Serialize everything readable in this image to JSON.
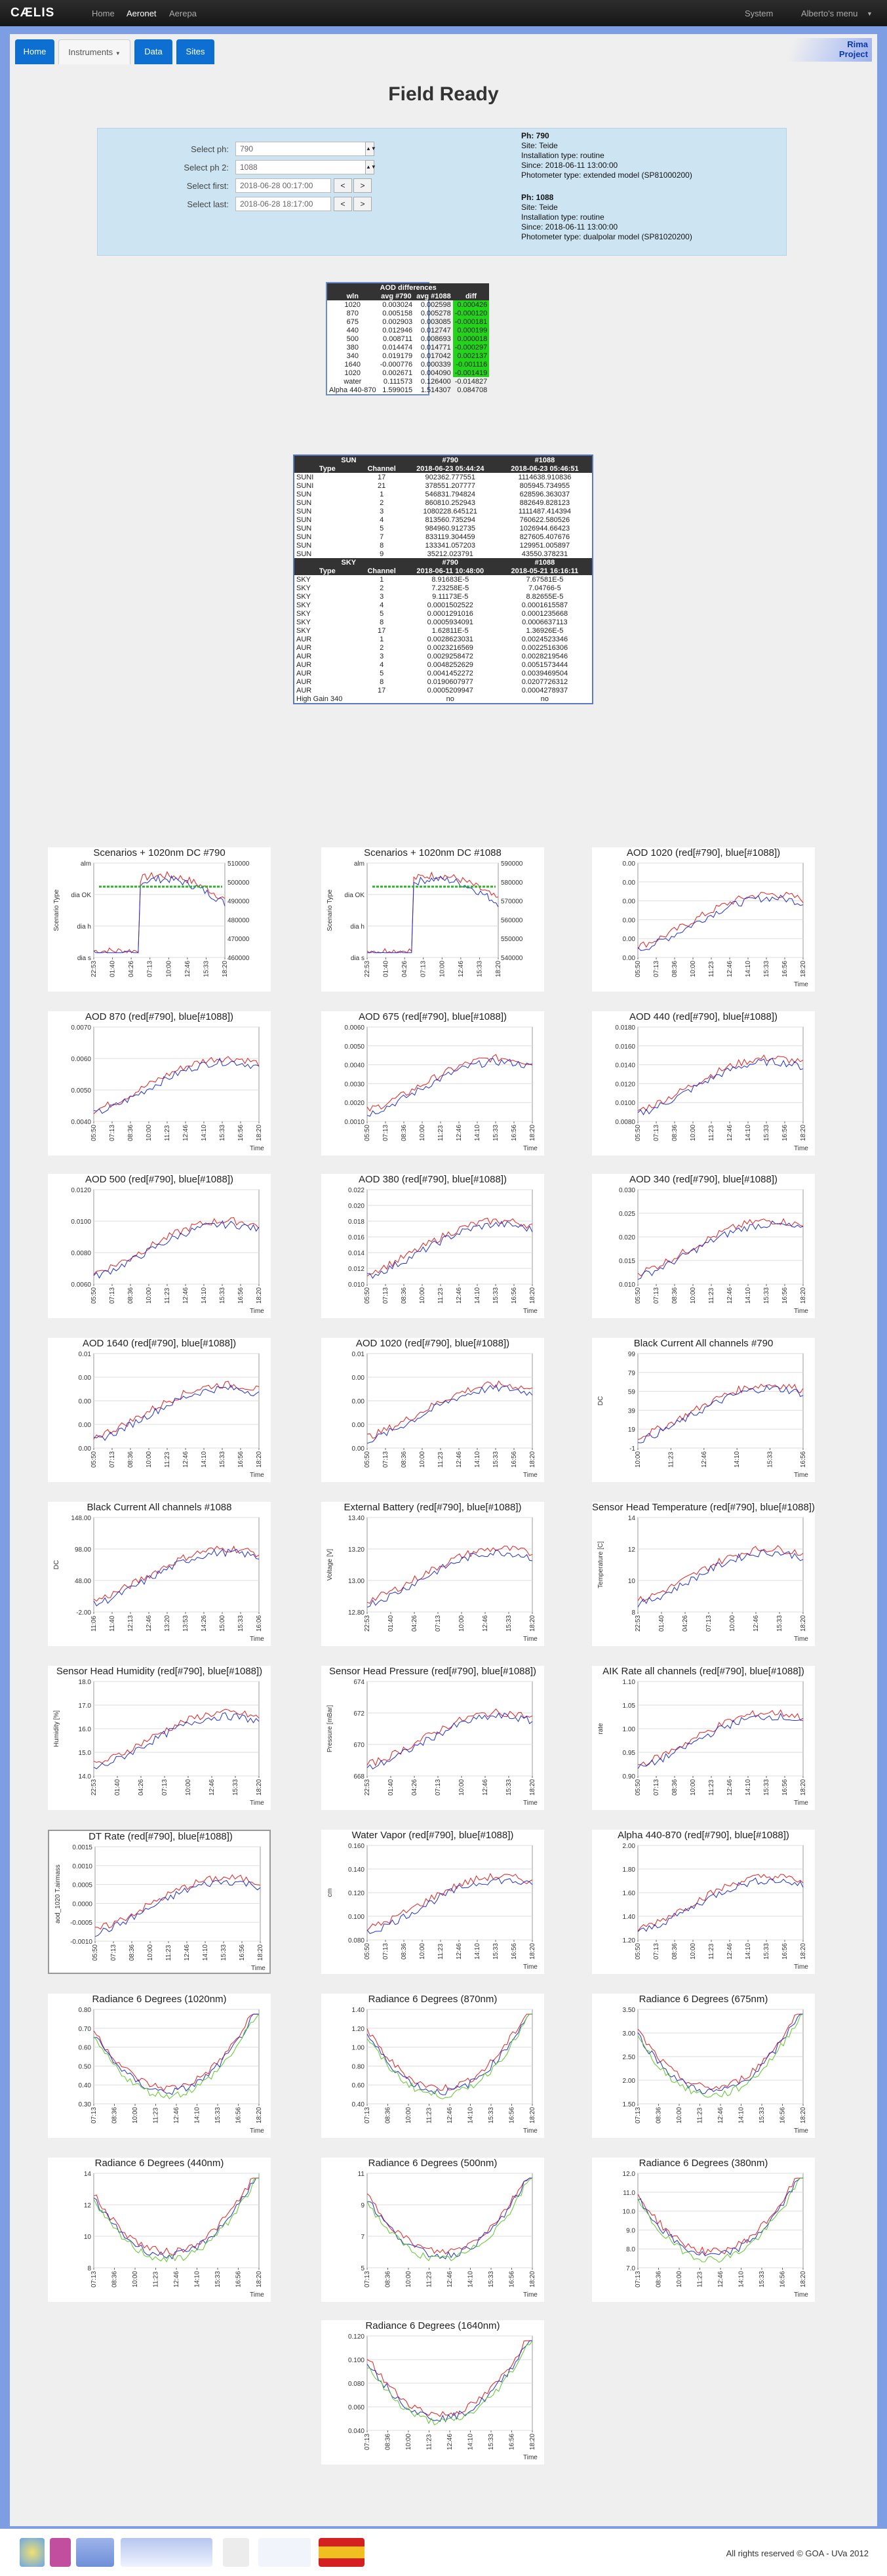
{
  "nav": {
    "brand": "CÆLIS",
    "home": "Home",
    "aeronet": "Aeronet",
    "aerepa": "Aerepa",
    "system": "System",
    "user": "Alberto's menu"
  },
  "tabs": {
    "home": "Home",
    "instruments": "Instruments",
    "data": "Data",
    "sites": "Sites"
  },
  "rima": {
    "line1": "Rima",
    "line2": "Project"
  },
  "page_title": "Field Ready",
  "selectors": {
    "ph_label": "Select ph:",
    "ph_value": "790",
    "ph2_label": "Select ph 2:",
    "ph2_value": "1088",
    "first_label": "Select first:",
    "first_value": "2018-06-28 00:17:00",
    "last_label": "Select last:",
    "last_value": "2018-06-28 18:17:00",
    "prev": "<",
    "next": ">"
  },
  "ph1": {
    "ph": "Ph: 790",
    "site": "Site: Teide",
    "inst": "Installation type: routine",
    "since": "Since: 2018-06-11 13:00:00",
    "model": "Photometer type: extended model (SP81000200)"
  },
  "ph2": {
    "ph": "Ph: 1088",
    "site": "Site: Teide",
    "inst": "Installation type: routine",
    "since": "Since: 2018-06-11 13:00:00",
    "model": "Photometer type: dualpolar model (SP81020200)"
  },
  "aod_table": {
    "title": "AOD differences",
    "headers": [
      "wln",
      "avg #790",
      "avg #1088",
      "diff"
    ],
    "rows": [
      [
        "1020",
        "0.003024",
        "0.002598",
        "0.000426"
      ],
      [
        "870",
        "0.005158",
        "0.005278",
        "-0.000120"
      ],
      [
        "675",
        "0.002903",
        "0.003085",
        "-0.000181"
      ],
      [
        "440",
        "0.012946",
        "0.012747",
        "0.000199"
      ],
      [
        "500",
        "0.008711",
        "0.008693",
        "0.000018"
      ],
      [
        "380",
        "0.014474",
        "0.014771",
        "-0.000297"
      ],
      [
        "340",
        "0.019179",
        "0.017042",
        "0.002137"
      ],
      [
        "1640",
        "-0.000776",
        "0.000339",
        "-0.001116"
      ],
      [
        "1020",
        "0.002671",
        "0.004090",
        "-0.001419"
      ],
      [
        "water",
        "0.111573",
        "0.126400",
        "-0.014827"
      ],
      [
        "Alpha 440-870",
        "1.599015",
        "1.514307",
        "0.084708"
      ]
    ]
  },
  "sun_table": {
    "h1": [
      "SUN",
      "#790",
      "#1088"
    ],
    "h2": [
      "Type",
      "Channel",
      "2018-06-23 05:44:24",
      "2018-06-23 05:46:51"
    ],
    "rows": [
      [
        "SUNI",
        "17",
        "902362.777551",
        "1114638.910836"
      ],
      [
        "SUNI",
        "21",
        "378551.207777",
        "805945.734955"
      ],
      [
        "SUN",
        "1",
        "546831.794824",
        "628596.363037"
      ],
      [
        "SUN",
        "2",
        "860810.252943",
        "882649.828123"
      ],
      [
        "SUN",
        "3",
        "1080228.645121",
        "1111487.414394"
      ],
      [
        "SUN",
        "4",
        "813560.735294",
        "760622.580526"
      ],
      [
        "SUN",
        "5",
        "984960.912735",
        "1026944.66423"
      ],
      [
        "SUN",
        "7",
        "833119.304459",
        "827605.407676"
      ],
      [
        "SUN",
        "8",
        "133341.057203",
        "129951.005897"
      ],
      [
        "SUN",
        "9",
        "35212.023791",
        "43550.378231"
      ]
    ],
    "s1": [
      "SKY",
      "#790",
      "#1088"
    ],
    "s2": [
      "Type",
      "Channel",
      "2018-06-11 10:48:00",
      "2018-05-21 16:16:11"
    ],
    "srows": [
      [
        "SKY",
        "1",
        "8.91683E-5",
        "7.67581E-5"
      ],
      [
        "SKY",
        "2",
        "7.23258E-5",
        "7.04766-5"
      ],
      [
        "SKY",
        "3",
        "9.11173E-5",
        "8.82655E-5"
      ],
      [
        "SKY",
        "4",
        "0.0001502522",
        "0.0001615587"
      ],
      [
        "SKY",
        "5",
        "0.0001291016",
        "0.0001235668"
      ],
      [
        "SKY",
        "8",
        "0.0005934091",
        "0.0006637113"
      ],
      [
        "SKY",
        "17",
        "1.62811E-5",
        "1.36926E-5"
      ],
      [
        "AUR",
        "1",
        "0.0028623031",
        "0.0024523346"
      ],
      [
        "AUR",
        "2",
        "0.0023216569",
        "0.0022516306"
      ],
      [
        "AUR",
        "3",
        "0.0029258472",
        "0.0028219546"
      ],
      [
        "AUR",
        "4",
        "0.0048252629",
        "0.0051573444"
      ],
      [
        "AUR",
        "5",
        "0.0041452272",
        "0.0039469504"
      ],
      [
        "AUR",
        "8",
        "0.0190607977",
        "0.0207726312"
      ],
      [
        "AUR",
        "17",
        "0.0005209947",
        "0.0004278937"
      ],
      [
        "High Gain 340",
        "",
        "no",
        "no"
      ]
    ]
  },
  "charts": [
    {
      "title": "Scenarios + 1020nm DC #790",
      "xlabel": "",
      "ylabel": "Scenario Type",
      "y2": [
        "510000",
        "500000",
        "490000",
        "480000",
        "470000",
        "460000"
      ],
      "yt": [
        "alm",
        "dia OK",
        "dia h",
        "dia s"
      ],
      "xt": [
        "22:53",
        "01:40",
        "04:26",
        "07:13",
        "10:00",
        "12:46",
        "15:33",
        "18:20"
      ]
    },
    {
      "title": "Scenarios + 1020nm DC #1088",
      "xlabel": "",
      "ylabel": "Scenario Type",
      "y2": [
        "590000",
        "580000",
        "570000",
        "560000",
        "550000",
        "540000"
      ],
      "yt": [
        "alm",
        "dia OK",
        "dia h",
        "dia s"
      ],
      "xt": [
        "22:53",
        "01:40",
        "04:26",
        "07:13",
        "10:00",
        "12:46",
        "15:33",
        "18:20"
      ]
    },
    {
      "title": "AOD 1020 (red[#790], blue[#1088])",
      "xlabel": "Time",
      "ylabel": "",
      "yt": [
        "0.00",
        "0.00",
        "0.00",
        "0.00",
        "0.00",
        "0.00"
      ],
      "xt": [
        "05:50",
        "07:13",
        "08:36",
        "10:00",
        "11:23",
        "12:46",
        "14:10",
        "15:33",
        "16:56",
        "18:20"
      ]
    },
    {
      "title": "AOD 870 (red[#790], blue[#1088])",
      "xlabel": "Time",
      "ylabel": "",
      "yt": [
        "0.0070",
        "0.0060",
        "0.0050",
        "0.0040"
      ],
      "xt": [
        "05:50",
        "07:13",
        "08:36",
        "10:00",
        "11:23",
        "12:46",
        "14:10",
        "15:33",
        "16:56",
        "18:20"
      ]
    },
    {
      "title": "AOD 675 (red[#790], blue[#1088])",
      "xlabel": "Time",
      "ylabel": "",
      "yt": [
        "0.0060",
        "0.0050",
        "0.0040",
        "0.0030",
        "0.0020",
        "0.0010"
      ],
      "xt": [
        "05:50",
        "07:13",
        "08:36",
        "10:00",
        "11:23",
        "12:46",
        "14:10",
        "15:33",
        "16:56",
        "18:20"
      ]
    },
    {
      "title": "AOD 440 (red[#790], blue[#1088])",
      "xlabel": "Time",
      "ylabel": "",
      "yt": [
        "0.0180",
        "0.0160",
        "0.0140",
        "0.0120",
        "0.0100",
        "0.0080"
      ],
      "xt": [
        "05:50",
        "07:13",
        "08:36",
        "10:00",
        "11:23",
        "12:46",
        "14:10",
        "15:33",
        "16:56",
        "18:20"
      ]
    },
    {
      "title": "AOD 500 (red[#790], blue[#1088])",
      "xlabel": "Time",
      "ylabel": "",
      "yt": [
        "0.0120",
        "0.0100",
        "0.0080",
        "0.0060"
      ],
      "xt": [
        "05:50",
        "07:13",
        "08:36",
        "10:00",
        "11:23",
        "12:46",
        "14:10",
        "15:33",
        "16:56",
        "18:20"
      ]
    },
    {
      "title": "AOD 380 (red[#790], blue[#1088])",
      "xlabel": "Time",
      "ylabel": "",
      "yt": [
        "0.022",
        "0.020",
        "0.018",
        "0.016",
        "0.014",
        "0.012",
        "0.010"
      ],
      "xt": [
        "05:50",
        "07:13",
        "08:36",
        "10:00",
        "11:23",
        "12:46",
        "14:10",
        "15:33",
        "16:56",
        "18:20"
      ]
    },
    {
      "title": "AOD 340 (red[#790], blue[#1088])",
      "xlabel": "Time",
      "ylabel": "",
      "yt": [
        "0.030",
        "0.025",
        "0.020",
        "0.015",
        "0.010"
      ],
      "xt": [
        "05:50",
        "07:13",
        "08:36",
        "10:00",
        "11:23",
        "12:46",
        "14:10",
        "15:33",
        "16:56",
        "18:20"
      ]
    },
    {
      "title": "AOD 1640 (red[#790], blue[#1088])",
      "xlabel": "Time",
      "ylabel": "",
      "yt": [
        "0.01",
        "0.00",
        "0.00",
        "0.00",
        "0.00"
      ],
      "xt": [
        "05:50",
        "07:13",
        "08:36",
        "10:00",
        "11:23",
        "12:46",
        "14:10",
        "15:33",
        "16:56",
        "18:20"
      ]
    },
    {
      "title": "AOD 1020 (red[#790], blue[#1088])",
      "xlabel": "Time",
      "ylabel": "",
      "yt": [
        "0.01",
        "0.00",
        "0.00",
        "0.00",
        "0.00"
      ],
      "xt": [
        "05:50",
        "07:13",
        "08:36",
        "10:00",
        "11:23",
        "12:46",
        "14:10",
        "15:33",
        "16:56",
        "18:20"
      ]
    },
    {
      "title": "Black Current All channels #790",
      "xlabel": "Time",
      "ylabel": "DC",
      "yt": [
        "99",
        "79",
        "59",
        "39",
        "19",
        "-1"
      ],
      "xt": [
        "10:00",
        "11:23",
        "12:46",
        "14:10",
        "15:33",
        "16:56"
      ]
    },
    {
      "title": "Black Current All channels #1088",
      "xlabel": "Time",
      "ylabel": "DC",
      "yt": [
        "148.00",
        "98.00",
        "48.00",
        "-2.00"
      ],
      "xt": [
        "11:06",
        "11:40",
        "12:13",
        "12:46",
        "13:20",
        "13:53",
        "14:26",
        "15:00",
        "15:33",
        "16:06"
      ]
    },
    {
      "title": "External Battery (red[#790], blue[#1088])",
      "xlabel": "Time",
      "ylabel": "Voltage [V]",
      "yt": [
        "13.40",
        "13.20",
        "13.00",
        "12.80"
      ],
      "xt": [
        "22:53",
        "01:40",
        "04:26",
        "07:13",
        "10:00",
        "12:46",
        "15:33",
        "18:20"
      ]
    },
    {
      "title": "Sensor Head Temperature (red[#790], blue[#1088])",
      "xlabel": "Time",
      "ylabel": "Temperature [C]",
      "yt": [
        "14",
        "12",
        "10",
        "8"
      ],
      "xt": [
        "22:53",
        "01:40",
        "04:26",
        "07:13",
        "10:00",
        "12:46",
        "15:33",
        "18:20"
      ]
    },
    {
      "title": "Sensor Head Humidity (red[#790], blue[#1088])",
      "xlabel": "Time",
      "ylabel": "Humidity [%]",
      "yt": [
        "18.0",
        "17.0",
        "16.0",
        "15.0",
        "14.0"
      ],
      "xt": [
        "22:53",
        "01:40",
        "04:26",
        "07:13",
        "10:00",
        "12:46",
        "15:33",
        "18:20"
      ]
    },
    {
      "title": "Sensor Head Pressure (red[#790], blue[#1088])",
      "xlabel": "Time",
      "ylabel": "Pressure [mBar]",
      "yt": [
        "674",
        "672",
        "670",
        "668"
      ],
      "xt": [
        "22:53",
        "01:40",
        "04:26",
        "07:13",
        "10:00",
        "12:46",
        "15:33",
        "18:20"
      ]
    },
    {
      "title": "AIK Rate all channels (red[#790], blue[#1088])",
      "xlabel": "Time",
      "ylabel": "rate",
      "yt": [
        "1.10",
        "1.05",
        "1.00",
        "0.95",
        "0.90"
      ],
      "xt": [
        "05:50",
        "07:13",
        "08:36",
        "10:00",
        "11:23",
        "12:46",
        "14:10",
        "15:33",
        "16:56",
        "18:20"
      ]
    },
    {
      "title": "DT Rate (red[#790], blue[#1088])",
      "xlabel": "Time",
      "ylabel": "aod_1020 T.airmass",
      "yt": [
        "0.0015",
        "0.0010",
        "0.0005",
        "0.0000",
        "-0.0005",
        "-0.0010"
      ],
      "xt": [
        "05:50",
        "07:13",
        "08:36",
        "10:00",
        "11:23",
        "12:46",
        "14:10",
        "15:33",
        "16:56",
        "18:20"
      ]
    },
    {
      "title": "Water Vapor (red[#790], blue[#1088])",
      "xlabel": "Time",
      "ylabel": "cm",
      "yt": [
        "0.160",
        "0.140",
        "0.120",
        "0.100",
        "0.080"
      ],
      "xt": [
        "05:50",
        "07:13",
        "08:36",
        "10:00",
        "11:23",
        "12:46",
        "14:10",
        "15:33",
        "16:56",
        "18:20"
      ]
    },
    {
      "title": "Alpha 440-870 (red[#790], blue[#1088])",
      "xlabel": "Time",
      "ylabel": "",
      "yt": [
        "2.00",
        "1.80",
        "1.60",
        "1.40",
        "1.20"
      ],
      "xt": [
        "05:50",
        "07:13",
        "08:36",
        "10:00",
        "11:23",
        "12:46",
        "14:10",
        "15:33",
        "16:56",
        "18:20"
      ]
    },
    {
      "title": "Radiance 6 Degrees (1020nm)",
      "xlabel": "Time",
      "ylabel": "",
      "yt": [
        "0.80",
        "0.70",
        "0.60",
        "0.50",
        "0.40",
        "0.30"
      ],
      "xt": [
        "07:13",
        "08:36",
        "10:00",
        "11:23",
        "12:46",
        "14:10",
        "15:33",
        "16:56",
        "18:20"
      ]
    },
    {
      "title": "Radiance 6 Degrees (870nm)",
      "xlabel": "Time",
      "ylabel": "",
      "yt": [
        "1.40",
        "1.20",
        "1.00",
        "0.80",
        "0.60",
        "0.40"
      ],
      "xt": [
        "07:13",
        "08:36",
        "10:00",
        "11:23",
        "12:46",
        "14:10",
        "15:33",
        "16:56",
        "18:20"
      ]
    },
    {
      "title": "Radiance 6 Degrees (675nm)",
      "xlabel": "Time",
      "ylabel": "",
      "yt": [
        "3.50",
        "3.00",
        "2.50",
        "2.00",
        "1.50"
      ],
      "xt": [
        "07:13",
        "08:36",
        "10:00",
        "11:23",
        "12:46",
        "14:10",
        "15:33",
        "16:56",
        "18:20"
      ]
    },
    {
      "title": "Radiance 6 Degrees (440nm)",
      "xlabel": "Time",
      "ylabel": "",
      "yt": [
        "14",
        "12",
        "10",
        "8"
      ],
      "xt": [
        "07:13",
        "08:36",
        "10:00",
        "11:23",
        "12:46",
        "14:10",
        "15:33",
        "16:56",
        "18:20"
      ]
    },
    {
      "title": "Radiance 6 Degrees (500nm)",
      "xlabel": "Time",
      "ylabel": "",
      "yt": [
        "11",
        "9",
        "7",
        "5"
      ],
      "xt": [
        "07:13",
        "08:36",
        "10:00",
        "11:23",
        "12:46",
        "14:10",
        "15:33",
        "16:56",
        "18:20"
      ]
    },
    {
      "title": "Radiance 6 Degrees (380nm)",
      "xlabel": "Time",
      "ylabel": "",
      "yt": [
        "12.0",
        "11.0",
        "10.0",
        "9.0",
        "8.0",
        "7.0"
      ],
      "xt": [
        "07:13",
        "08:36",
        "10:00",
        "11:23",
        "12:46",
        "14:10",
        "15:33",
        "16:56",
        "18:20"
      ]
    },
    {
      "title": "Radiance 6 Degrees (1640nm)",
      "xlabel": "Time",
      "ylabel": "",
      "yt": [
        "0.120",
        "0.100",
        "0.080",
        "0.060",
        "0.040"
      ],
      "xt": [
        "07:13",
        "08:36",
        "10:00",
        "11:23",
        "12:46",
        "14:10",
        "15:33",
        "16:56",
        "18:20"
      ]
    }
  ],
  "footer": {
    "text": "All rights reserved © GOA - UVa 2012",
    "logos": [
      "goa-logo",
      "uva-logo",
      "mad-logo",
      "aeronet-logo",
      "eu-logo",
      "actris-logo",
      "spain-gov-logo"
    ]
  }
}
